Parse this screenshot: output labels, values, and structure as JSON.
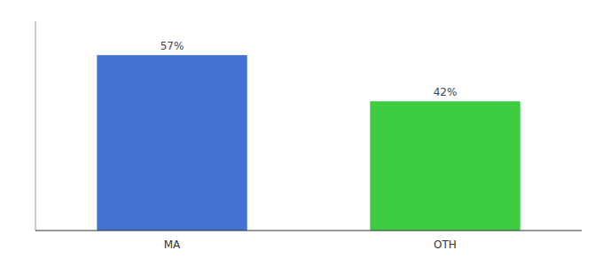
{
  "chart_data": {
    "type": "bar",
    "categories": [
      "MA",
      "OTH"
    ],
    "values": [
      57,
      42
    ],
    "value_labels": [
      "57%",
      "42%"
    ],
    "colors": [
      "#4472d4",
      "#3dcc42"
    ],
    "ylim": [
      0,
      68
    ],
    "yticks": [],
    "data_labels": true,
    "tick_labels": "x",
    "grid": false
  }
}
